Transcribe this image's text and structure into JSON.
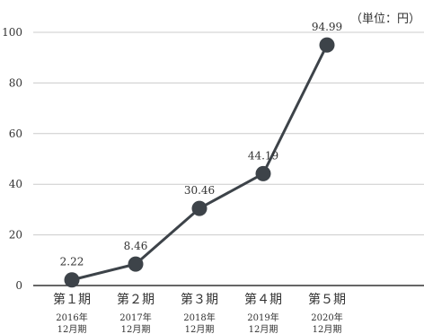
{
  "unit_label": "（単位：円）",
  "chart_data": {
    "type": "line",
    "categories": [
      "第１期",
      "第２期",
      "第３期",
      "第４期",
      "第５期"
    ],
    "category_periods": [
      "2016年12月期",
      "2017年12月期",
      "2018年12月期",
      "2019年12月期",
      "2020年12月期"
    ],
    "series": [
      {
        "values": [
          2.22,
          8.46,
          30.46,
          44.19,
          94.99
        ]
      }
    ],
    "data_labels": [
      "2.22",
      "8.46",
      "30.46",
      "44.19",
      "94.99"
    ],
    "yticks": [
      0,
      20,
      40,
      60,
      80,
      100
    ],
    "ylim": [
      0,
      100
    ],
    "grid": true,
    "title": "",
    "xlabel": "",
    "ylabel": "",
    "colors": {
      "line": "#3d4349",
      "marker": "#3d4349",
      "grid": "#cccccc",
      "axis": "#333333",
      "text": "#333333"
    }
  }
}
